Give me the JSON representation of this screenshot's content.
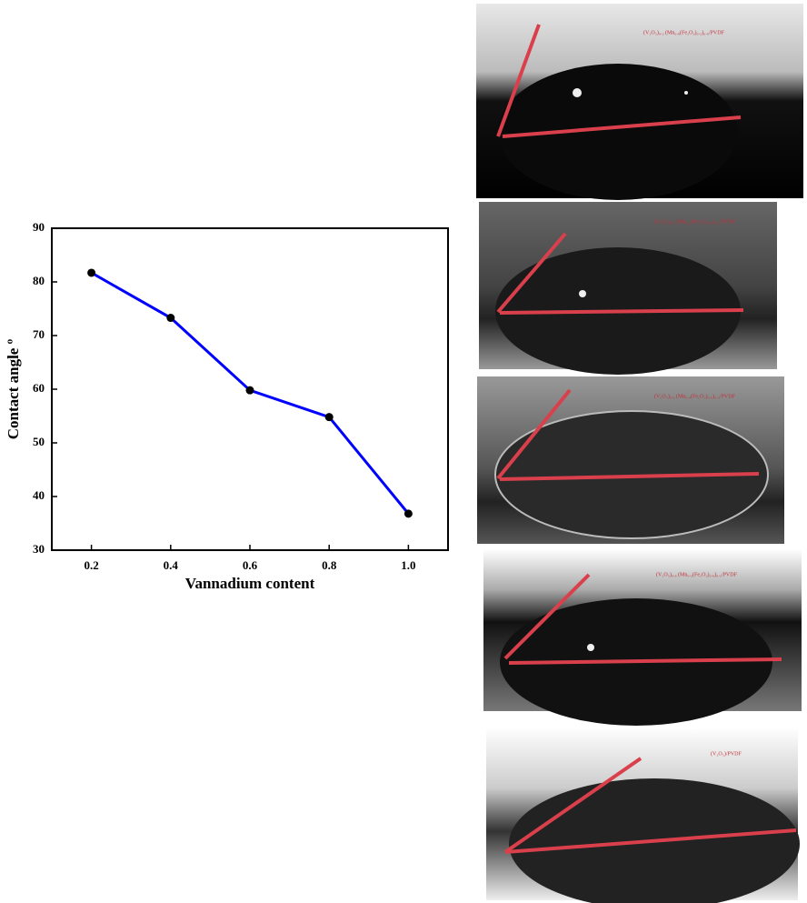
{
  "chart_data": {
    "type": "line",
    "x_label": "Vannadium content",
    "y_label": "Contact angle º",
    "x": [
      0.2,
      0.4,
      0.6,
      0.8,
      1.0
    ],
    "series": [
      {
        "color": "#0000ff",
        "values": [
          81.7,
          73.3,
          59.8,
          54.8,
          36.8
        ]
      }
    ],
    "xlim": [
      0.1,
      1.1
    ],
    "xticks": [
      0.2,
      0.4,
      0.6,
      0.8,
      {
        "value": 1.0,
        "label": "1.0"
      }
    ],
    "ylim": [
      30,
      90
    ],
    "yticks": [
      30,
      40,
      50,
      60,
      70,
      80,
      90
    ]
  },
  "photos": [
    {
      "label": "(V₂O₅)₀.₂ (Mn₀.₈(Fe₂O₃)₀.₂)₀.₈/PVDF"
    },
    {
      "label": "(V₂O₅)₀.₄ (Mn₀.₆(Fe₂O₃)₀.₄)₀.₆/PVDF"
    },
    {
      "label": "(V₂O₅)₀.₆ (Mn₀.₄(Fe₂O₃)₀.₆)₀.₄/PVDF"
    },
    {
      "label": "(V₂O₅)₀.₈ (Mn₀.₂(Fe₂O₃)₀.₈)₀.₂/PVDF"
    },
    {
      "label": "(V₂O₅)/PVDF"
    }
  ]
}
